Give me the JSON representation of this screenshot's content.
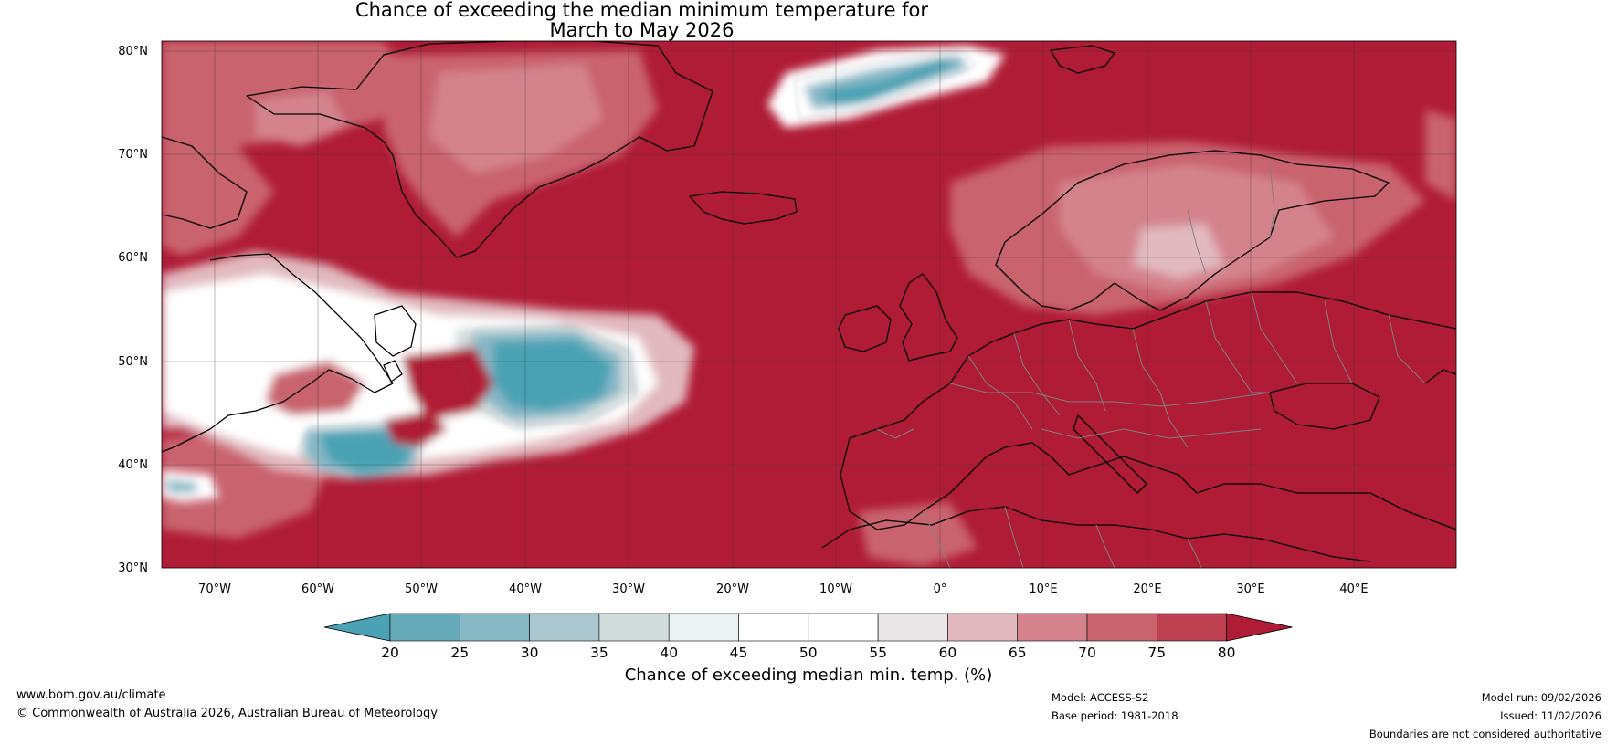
{
  "title": {
    "line1": "Chance of exceeding the median minimum temperature for",
    "line2": "March to May 2026"
  },
  "map": {
    "latitude_labels": [
      "80°N",
      "70°N",
      "60°N",
      "50°N",
      "40°N",
      "30°N"
    ],
    "longitude_labels": [
      "70°W",
      "60°W",
      "50°W",
      "40°W",
      "30°W",
      "20°W",
      "10°W",
      "0°",
      "10°E",
      "20°E",
      "30°E",
      "40°E"
    ],
    "region": "North Atlantic and Europe",
    "colors": {
      "ocean_high": "#b01c36",
      "land_border": "#000000",
      "country_border": "#808080"
    }
  },
  "colorbar": {
    "ticks": [
      "20",
      "25",
      "30",
      "35",
      "40",
      "45",
      "50",
      "55",
      "60",
      "65",
      "70",
      "75",
      "80"
    ],
    "label": "Chance of exceeding median min. temp. (%)",
    "colors": [
      "#4aa2b4",
      "#66aab9",
      "#87b8c6",
      "#aac7d0",
      "#d1dcdd",
      "#eaf2f3",
      "#ffffff",
      "#ffffff",
      "#ebe6e8",
      "#e1b9bf",
      "#d4838d",
      "#c9646e",
      "#bd4050",
      "#b01c36"
    ]
  },
  "footer": {
    "website": "www.bom.gov.au/climate",
    "copyright": "© Commonwealth of Australia 2026, Australian Bureau of Meteorology",
    "model": "Model: ACCESS-S2",
    "base_period": "Base period: 1981-2018",
    "model_run": "Model run: 09/02/2026",
    "issued": "Issued: 11/02/2026",
    "disclaimer": "Boundaries are not considered authoritative"
  }
}
